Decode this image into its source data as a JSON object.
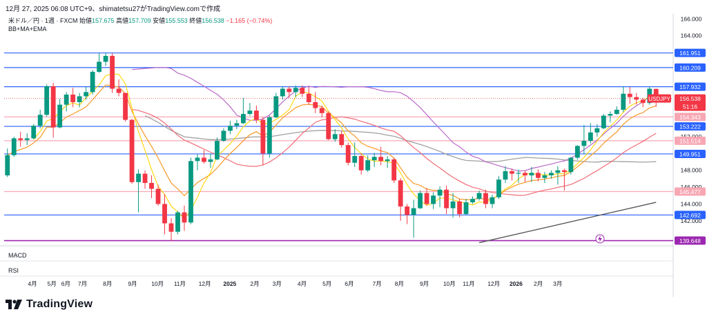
{
  "header": {
    "timestamp_line": "12月 27, 2025 06:08 UTC+9、shimatetsu27がTradingView.comで作成"
  },
  "legend": {
    "symbol": "米ドル／円 · 1週 · FXCM",
    "open_label": "始値",
    "open": "157.675",
    "high_label": "高値",
    "high": "157.709",
    "low_label": "安値",
    "low": "155.553",
    "close_label": "終値",
    "close": "156.538",
    "change": "−1.165 (−0.74%)",
    "indicator": "BB+MA+EMA"
  },
  "panes": {
    "macd": "MACD",
    "rsi": "RSI"
  },
  "branding": {
    "name": "TradingView"
  },
  "colors": {
    "up": "#089981",
    "down": "#f23645",
    "hline_blue": "#2962ff",
    "hline_pink": "#f7a7b3",
    "hline_purple": "#9c27b0",
    "sma": "#ffd600",
    "ema": "#f7a035",
    "bb_basis": "#f06b75",
    "bb_upper_lower": "#ba68c8",
    "ma_long": "#a0a0a0",
    "trendline": "#555555"
  },
  "chart_data": {
    "type": "candlestick",
    "ylim": [
      139.2,
      166.6
    ],
    "y_ticks": [
      "166.000",
      "164.000",
      "152.000",
      "148.000",
      "146.000",
      "144.000",
      "142.000"
    ],
    "x_ticks": [
      "4月",
      "5月",
      "6月",
      "7月",
      "8月",
      "9月",
      "10月",
      "11月",
      "12月",
      "2025",
      "2月",
      "3月",
      "4月",
      "5月",
      "6月",
      "7月",
      "8月",
      "9月",
      "10月",
      "11月",
      "12月",
      "2026",
      "2月",
      "3月"
    ],
    "price_lines": [
      {
        "label": "161.951",
        "value": 161.951,
        "style": "blue"
      },
      {
        "label": "160.209",
        "value": 160.209,
        "style": "blue"
      },
      {
        "label": "157.932",
        "value": 157.932,
        "style": "blue"
      },
      {
        "label": "154.343",
        "value": 154.343,
        "style": "pink"
      },
      {
        "label": "153.222",
        "value": 153.222,
        "style": "blue"
      },
      {
        "label": "151.514",
        "value": 151.514,
        "style": "pink"
      },
      {
        "label": "149.951",
        "value": 149.951,
        "style": "blue"
      },
      {
        "label": "145.477",
        "value": 145.477,
        "style": "pink"
      },
      {
        "label": "142.692",
        "value": 142.692,
        "style": "blue"
      },
      {
        "label": "139.648",
        "value": 139.648,
        "style": "purple"
      }
    ],
    "current_price": {
      "symbol": "USDJPY",
      "price": "156.538",
      "countdown": "51:16",
      "value": 156.538
    },
    "candles": [
      [
        147.4,
        149.8,
        147.2,
        150.6
      ],
      [
        149.8,
        151.8,
        149.6,
        152.0
      ],
      [
        151.8,
        151.6,
        150.8,
        152.6
      ],
      [
        151.6,
        151.8,
        151.0,
        152.4
      ],
      [
        151.8,
        153.3,
        151.7,
        153.5
      ],
      [
        153.3,
        154.6,
        153.0,
        155.2
      ],
      [
        154.6,
        158.0,
        154.4,
        158.2
      ],
      [
        158.0,
        153.1,
        151.9,
        158.4
      ],
      [
        153.1,
        155.8,
        153.0,
        156.5
      ],
      [
        155.8,
        157.0,
        155.0,
        157.3
      ],
      [
        157.0,
        156.1,
        155.5,
        157.8
      ],
      [
        156.1,
        156.8,
        155.5,
        157.2
      ],
      [
        156.8,
        157.3,
        156.4,
        157.9
      ],
      [
        157.3,
        159.7,
        157.0,
        159.9
      ],
      [
        159.7,
        160.9,
        159.6,
        161.9
      ],
      [
        160.9,
        161.6,
        160.4,
        161.9
      ],
      [
        161.6,
        157.7,
        157.2,
        161.9
      ],
      [
        157.7,
        157.2,
        156.8,
        158.8
      ],
      [
        157.2,
        154.0,
        153.8,
        157.2
      ],
      [
        154.0,
        146.6,
        146.4,
        154.1
      ],
      [
        146.6,
        147.6,
        143.0,
        148.1
      ],
      [
        147.6,
        146.5,
        145.8,
        148.0
      ],
      [
        146.5,
        145.8,
        144.7,
        147.4
      ],
      [
        145.8,
        144.0,
        143.8,
        146.3
      ],
      [
        144.0,
        141.7,
        140.4,
        145.2
      ],
      [
        141.7,
        140.7,
        139.6,
        142.3
      ],
      [
        140.7,
        143.0,
        140.4,
        143.2
      ],
      [
        143.0,
        141.8,
        140.8,
        143.8
      ],
      [
        141.8,
        149.1,
        141.6,
        149.5
      ],
      [
        149.1,
        149.5,
        148.0,
        149.9
      ],
      [
        149.5,
        149.0,
        148.8,
        150.4
      ],
      [
        149.0,
        149.3,
        148.3,
        150.0
      ],
      [
        149.3,
        151.5,
        149.2,
        151.9
      ],
      [
        151.5,
        152.7,
        151.4,
        153.0
      ],
      [
        152.7,
        153.3,
        152.3,
        153.9
      ],
      [
        153.3,
        153.6,
        152.9,
        154.0
      ],
      [
        153.6,
        154.7,
        153.5,
        156.6
      ],
      [
        154.7,
        155.1,
        154.5,
        156.0
      ],
      [
        155.1,
        154.0,
        153.6,
        155.7
      ],
      [
        154.0,
        150.0,
        148.6,
        154.3
      ],
      [
        150.0,
        154.3,
        149.5,
        154.5
      ],
      [
        154.3,
        156.8,
        154.2,
        157.2
      ],
      [
        156.8,
        157.7,
        156.4,
        158.0
      ],
      [
        157.7,
        157.3,
        156.6,
        158.0
      ],
      [
        157.3,
        157.8,
        156.7,
        158.1
      ],
      [
        157.8,
        157.1,
        156.7,
        158.1
      ],
      [
        157.1,
        156.1,
        155.8,
        157.9
      ],
      [
        156.1,
        155.4,
        154.8,
        157.3
      ],
      [
        155.4,
        154.8,
        154.3,
        155.7
      ],
      [
        154.8,
        151.7,
        151.6,
        155.0
      ],
      [
        151.7,
        152.3,
        151.4,
        152.9
      ],
      [
        152.3,
        151.0,
        150.7,
        152.7
      ],
      [
        151.0,
        148.9,
        148.6,
        151.3
      ],
      [
        148.9,
        149.7,
        148.4,
        151.3
      ],
      [
        149.7,
        148.0,
        147.5,
        150.0
      ],
      [
        148.0,
        149.2,
        147.8,
        149.8
      ],
      [
        149.2,
        149.6,
        148.4,
        150.1
      ],
      [
        149.6,
        149.1,
        148.6,
        150.8
      ],
      [
        149.1,
        149.3,
        148.3,
        149.7
      ],
      [
        149.3,
        146.8,
        146.5,
        149.5
      ],
      [
        146.8,
        143.7,
        142.0,
        147.1
      ],
      [
        143.7,
        142.7,
        141.6,
        144.0
      ],
      [
        142.7,
        143.5,
        140.0,
        144.5
      ],
      [
        143.5,
        145.3,
        143.4,
        145.6
      ],
      [
        145.3,
        144.0,
        143.8,
        145.9
      ],
      [
        144.0,
        145.0,
        143.4,
        145.4
      ],
      [
        145.0,
        145.7,
        143.6,
        146.1
      ],
      [
        145.7,
        143.5,
        142.8,
        146.2
      ],
      [
        143.5,
        144.3,
        142.4,
        145.3
      ],
      [
        144.3,
        142.8,
        142.4,
        144.6
      ],
      [
        142.8,
        144.2,
        142.7,
        144.6
      ],
      [
        144.2,
        144.6,
        144.0,
        144.9
      ],
      [
        144.6,
        145.3,
        144.4,
        145.6
      ],
      [
        145.3,
        144.0,
        143.5,
        145.7
      ],
      [
        144.0,
        144.8,
        143.5,
        145.1
      ],
      [
        144.8,
        146.9,
        144.6,
        147.3
      ],
      [
        146.9,
        147.9,
        146.5,
        148.5
      ],
      [
        147.9,
        147.6,
        146.8,
        148.2
      ],
      [
        147.6,
        147.7,
        146.5,
        148.1
      ],
      [
        147.7,
        147.4,
        146.6,
        148.0
      ],
      [
        147.4,
        147.7,
        146.6,
        148.4
      ],
      [
        147.7,
        147.1,
        146.7,
        148.1
      ],
      [
        147.1,
        147.4,
        146.5,
        147.8
      ],
      [
        147.4,
        147.7,
        147.0,
        148.0
      ],
      [
        147.7,
        148.0,
        146.3,
        148.5
      ],
      [
        148.0,
        147.8,
        145.6,
        148.2
      ],
      [
        147.8,
        149.5,
        147.5,
        149.6
      ],
      [
        149.5,
        150.9,
        149.3,
        151.0
      ],
      [
        150.9,
        151.5,
        150.0,
        153.4
      ],
      [
        151.5,
        152.5,
        151.2,
        153.6
      ],
      [
        152.5,
        153.0,
        152.0,
        153.5
      ],
      [
        153.0,
        154.5,
        152.9,
        154.7
      ],
      [
        154.5,
        154.7,
        153.7,
        155.0
      ],
      [
        154.7,
        155.2,
        154.6,
        155.6
      ],
      [
        155.2,
        157.1,
        154.9,
        158.0
      ],
      [
        157.1,
        156.7,
        155.9,
        157.9
      ],
      [
        156.7,
        156.4,
        155.8,
        157.2
      ],
      [
        156.4,
        156.0,
        155.5,
        156.6
      ],
      [
        156.0,
        157.7,
        155.8,
        157.9
      ],
      [
        157.675,
        156.538,
        155.553,
        157.709
      ]
    ]
  }
}
